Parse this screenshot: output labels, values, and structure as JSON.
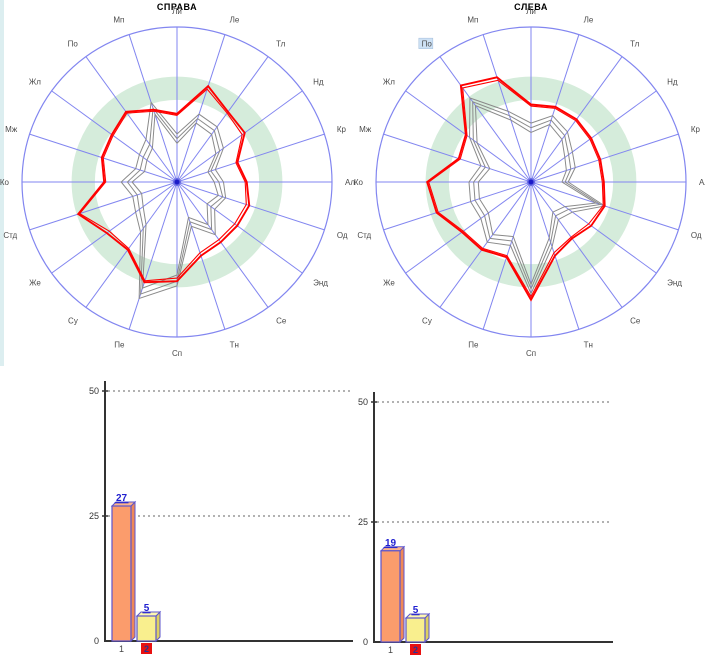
{
  "app": {
    "background": "#ffffff",
    "left_strip_color": "#dceef0"
  },
  "colors": {
    "radar_grid": "#8286f0",
    "radar_norm_band": "#d5ecdb",
    "radar_series_red": "#ff0000",
    "radar_series_gray": "#8a8a8a",
    "radar_center_dot": "#1b1bc8",
    "radar_label_text": "#4a4a4a",
    "radar_highlight_bg": "#cde1f5",
    "bar_orange": "#fb9c6c",
    "bar_orange_top": "#fdb58a",
    "bar_orange_side": "#ef8856",
    "bar_yellow": "#f9ef8e",
    "bar_yellow_top": "#fdf7b0",
    "bar_yellow_side": "#ddd060",
    "bar_border": "#5c55cd",
    "bar_value_label": "#1f1fd0",
    "axis": "#333333",
    "grid_dash": "#666666",
    "tick_text": "#333333",
    "category_text": "#444444",
    "category_highlight_bg": "#e81010",
    "category_highlight_text": "#283593"
  },
  "chart_data": [
    {
      "type": "radar",
      "id": "radar-right",
      "title": "СПРАВА",
      "categories": [
        "Ли",
        "Ле",
        "Тл",
        "Нд",
        "Кр",
        "Ал",
        "Од",
        "Энд",
        "Се",
        "Тн",
        "Сп",
        "Пе",
        "Су",
        "Же",
        "Стд",
        "Ко",
        "Мж",
        "Жл",
        "По",
        "Мп"
      ],
      "rlim": [
        0,
        100
      ],
      "norm_band": [
        53,
        68
      ],
      "highlight_category": null,
      "series": [
        {
          "name": "current-red",
          "values": [
            44,
            65,
            56,
            54,
            41,
            45,
            49,
            48,
            48,
            50,
            64,
            68,
            54,
            56,
            67,
            47,
            51,
            52,
            56,
            49
          ]
        },
        {
          "name": "current-red-2",
          "values": [
            43,
            63,
            55,
            52,
            40,
            44,
            47,
            46,
            46,
            48,
            62,
            67,
            53,
            54,
            66,
            46,
            50,
            51,
            55,
            48
          ]
        },
        {
          "name": "previous-gray-1",
          "values": [
            31,
            46,
            44,
            37,
            26,
            30,
            33,
            30,
            42,
            30,
            67,
            79,
            40,
            33,
            30,
            36,
            28,
            30,
            34,
            54
          ]
        },
        {
          "name": "previous-gray-2",
          "values": [
            28,
            43,
            41,
            34,
            23,
            27,
            31,
            27,
            38,
            27,
            64,
            76,
            37,
            30,
            27,
            32,
            25,
            27,
            30,
            50
          ]
        },
        {
          "name": "previous-gray-3",
          "values": [
            25,
            40,
            38,
            31,
            21,
            24,
            28,
            24,
            34,
            24,
            60,
            72,
            34,
            27,
            24,
            29,
            22,
            24,
            27,
            46
          ]
        }
      ]
    },
    {
      "type": "radar",
      "id": "radar-left",
      "title": "СЛЕВА",
      "categories": [
        "Ли",
        "Ле",
        "Тл",
        "Нд",
        "Кр",
        "Ал",
        "Од",
        "Энд",
        "Се",
        "Тн",
        "Сп",
        "Пе",
        "Су",
        "Же",
        "Стд",
        "Ко",
        "Мж",
        "Жл",
        "По",
        "Мп"
      ],
      "rlim": [
        0,
        100
      ],
      "norm_band": [
        53,
        68
      ],
      "highlight_category": "По",
      "series": [
        {
          "name": "current-red",
          "values": [
            50,
            51,
            50,
            48,
            47,
            47,
            50,
            48,
            45,
            50,
            76,
            51,
            54,
            55,
            64,
            67,
            49,
            52,
            77,
            71
          ]
        },
        {
          "name": "current-red-2",
          "values": [
            49,
            50,
            49,
            47,
            46,
            46,
            49,
            46,
            44,
            48,
            74,
            50,
            53,
            54,
            63,
            66,
            48,
            51,
            75,
            69
          ]
        },
        {
          "name": "previous-gray-1",
          "values": [
            38,
            45,
            40,
            33,
            30,
            24,
            50,
            33,
            30,
            44,
            72,
            43,
            48,
            40,
            41,
            40,
            34,
            49,
            67,
            48
          ]
        },
        {
          "name": "previous-gray-2",
          "values": [
            35,
            42,
            37,
            30,
            27,
            22,
            47,
            30,
            27,
            41,
            69,
            40,
            45,
            37,
            38,
            37,
            31,
            46,
            64,
            45
          ]
        },
        {
          "name": "previous-gray-3",
          "values": [
            32,
            39,
            34,
            27,
            24,
            20,
            44,
            27,
            24,
            38,
            66,
            37,
            42,
            34,
            35,
            34,
            28,
            43,
            61,
            42
          ]
        }
      ]
    },
    {
      "type": "bar",
      "id": "bar-right",
      "title": "",
      "categories": [
        "1",
        "2"
      ],
      "values": [
        27,
        5
      ],
      "value_labels": [
        "27",
        "5"
      ],
      "ylim": [
        0,
        50
      ],
      "yticks": [
        "0",
        "25",
        "50"
      ],
      "grid": "dashed-horizontal",
      "highlight_category": "2"
    },
    {
      "type": "bar",
      "id": "bar-left",
      "title": "",
      "categories": [
        "1",
        "2"
      ],
      "values": [
        19,
        5
      ],
      "value_labels": [
        "19",
        "5"
      ],
      "ylim": [
        0,
        50
      ],
      "yticks": [
        "0",
        "25",
        "50"
      ],
      "grid": "dashed-horizontal",
      "highlight_category": "2"
    }
  ]
}
